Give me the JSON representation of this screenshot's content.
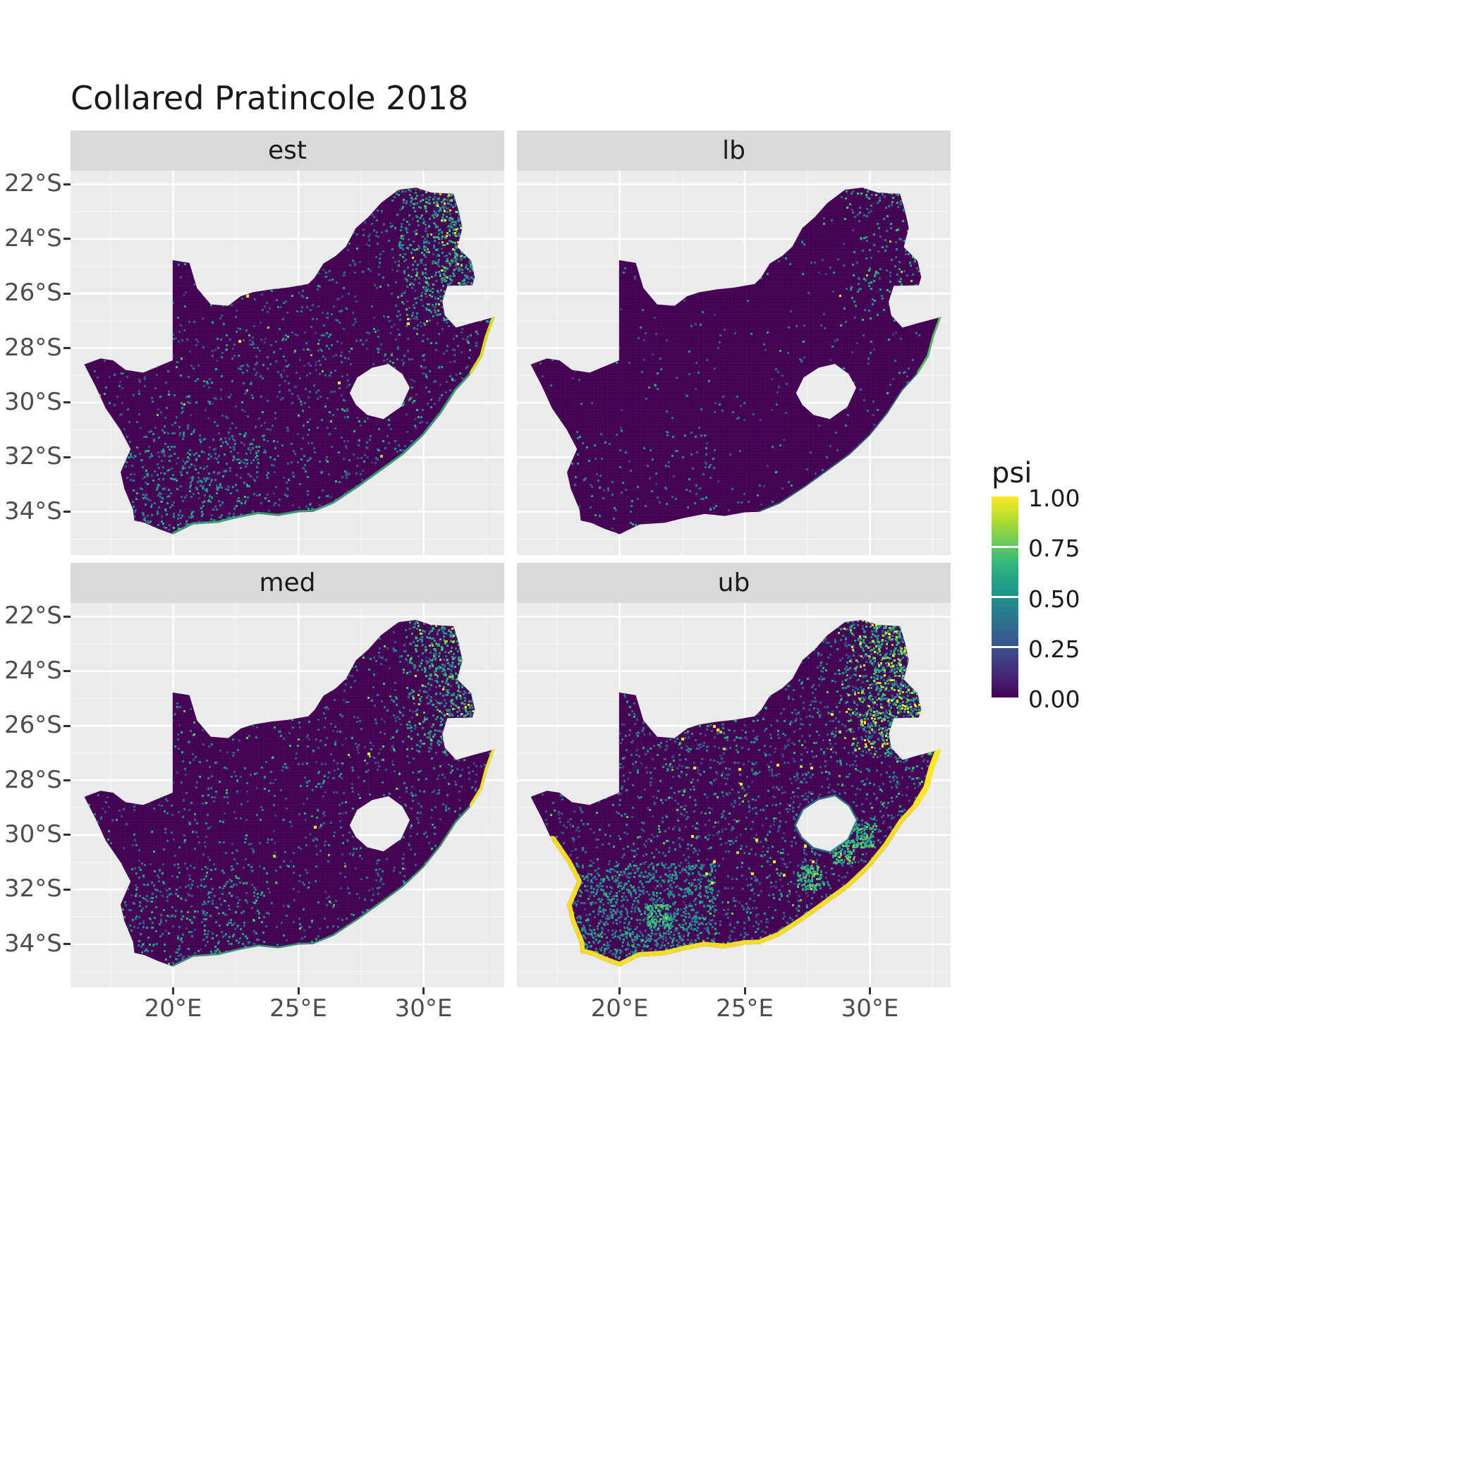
{
  "title": "Collared Pratincole 2018",
  "facets": [
    {
      "label": "est"
    },
    {
      "label": "lb"
    },
    {
      "label": "med"
    },
    {
      "label": "ub"
    }
  ],
  "axes": {
    "y_ticks": [
      "22°S",
      "24°S",
      "26°S",
      "28°S",
      "30°S",
      "32°S",
      "34°S"
    ],
    "x_ticks": [
      "20°E",
      "25°E",
      "30°E"
    ]
  },
  "legend": {
    "title": "psi",
    "ticks": [
      "1.00",
      "0.75",
      "0.50",
      "0.25",
      "0.00"
    ],
    "tick_values": [
      1.0,
      0.75,
      0.5,
      0.25,
      0.0
    ]
  },
  "colors": {
    "panel_background": "#EBEBEB",
    "strip_background": "#D9D9D9",
    "grid_line": "#FFFFFF",
    "map_base": "#440154",
    "viridis_stops": [
      "#440154",
      "#482878",
      "#3e4989",
      "#31688e",
      "#26828e",
      "#1f9e89",
      "#35b779",
      "#6dcd59",
      "#b5de2b",
      "#fde725"
    ]
  },
  "chart_data": {
    "type": "heatmap",
    "subtype": "faceted_raster_map",
    "title": "Collared Pratincole 2018",
    "region": "South Africa",
    "facets": [
      "est",
      "lb",
      "med",
      "ub"
    ],
    "value_variable": "psi",
    "value_range": [
      0.0,
      1.0
    ],
    "palette": "viridis",
    "x": {
      "tick_labels": [
        "20°E",
        "25°E",
        "30°E"
      ],
      "ticks_deg_east": [
        20,
        25,
        30
      ],
      "range_deg_east": [
        15.9,
        33.2
      ]
    },
    "y": {
      "tick_labels": [
        "22°S",
        "24°S",
        "26°S",
        "28°S",
        "30°S",
        "32°S",
        "34°S"
      ],
      "ticks_deg_south": [
        22,
        24,
        26,
        28,
        30,
        32,
        34
      ],
      "range_deg_south": [
        21.5,
        35.6
      ]
    },
    "legend_tick_values": [
      1.0,
      0.75,
      0.5,
      0.25,
      0.0
    ],
    "facet_patterns": {
      "est": "psi near 0 over most of the interior; moderate values 0.25-0.75 concentrated along the north-eastern escarpment and the east coast; scattered low-moderate cells along the south coast and south-west",
      "lb": "lower bound: psi near 0 almost everywhere; only a thin band of moderate values along the east coast and far north-east edge",
      "med": "similar to est: psi near 0 across the interior, moderate-high fringe on the north-east edge and a yellow-green strip on the far east coast",
      "ub": "upper bound: widespread speckling of moderate values across the country; values near 1 (yellow) along the entire coastline, with dense green-yellow patches in the north-east and south-west mountains"
    }
  }
}
